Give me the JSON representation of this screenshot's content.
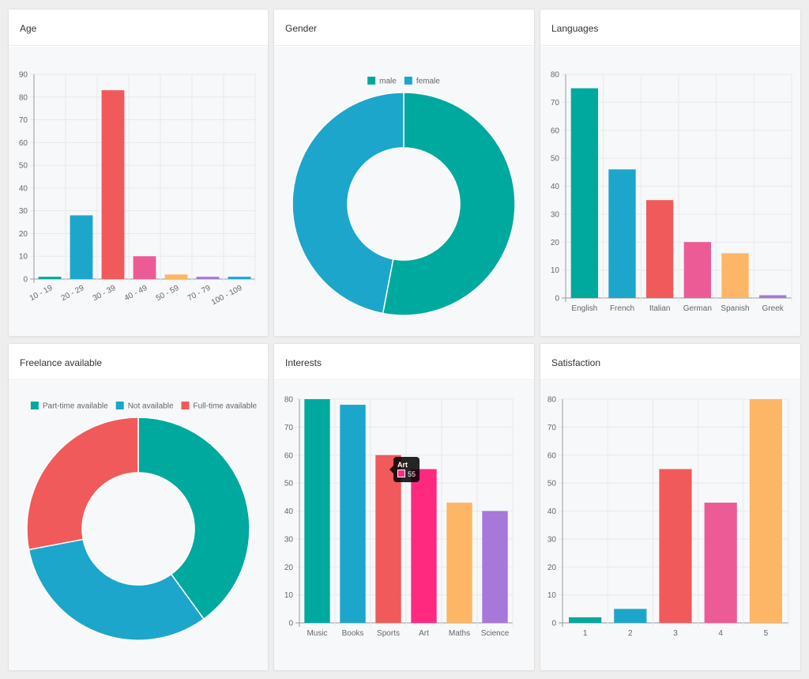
{
  "colors": {
    "teal": "#00a99d",
    "blue": "#1da6cb",
    "red": "#f05a5b",
    "pink": "#ec5b95",
    "orange": "#fdb665",
    "purple": "#a678d9",
    "magenta": "#ff2a7f"
  },
  "charts": {
    "age": {
      "header": "Age",
      "chart_data": {
        "type": "bar",
        "categories": [
          "10 - 19",
          "20 - 29",
          "30 - 39",
          "40 - 49",
          "50 - 59",
          "70 - 79",
          "100 - 109"
        ],
        "values": [
          1,
          28,
          83,
          10,
          2,
          1,
          1
        ],
        "colors": [
          "#00a99d",
          "#1da6cb",
          "#f05a5b",
          "#ec5b95",
          "#fdb665",
          "#a678d9",
          "#1da6cb"
        ],
        "ylim": [
          0,
          90
        ],
        "yticks": [
          0,
          10,
          20,
          30,
          40,
          50,
          60,
          70,
          80,
          90
        ],
        "rotated_labels": true,
        "grid": true
      }
    },
    "gender": {
      "header": "Gender",
      "chart_data": {
        "type": "pie",
        "donut": true,
        "labels": [
          "male",
          "female"
        ],
        "values": [
          53,
          47
        ],
        "colors": [
          "#00a99d",
          "#1da6cb"
        ],
        "legend": "top"
      }
    },
    "languages": {
      "header": "Languages",
      "chart_data": {
        "type": "bar",
        "categories": [
          "English",
          "French",
          "Italian",
          "German",
          "Spanish",
          "Greek"
        ],
        "values": [
          75,
          46,
          35,
          20,
          16,
          1
        ],
        "colors": [
          "#00a99d",
          "#1da6cb",
          "#f05a5b",
          "#ec5b95",
          "#fdb665",
          "#a678d9"
        ],
        "ylim": [
          0,
          80
        ],
        "yticks": [
          0,
          10,
          20,
          30,
          40,
          50,
          60,
          70,
          80
        ],
        "grid": true
      }
    },
    "freelance": {
      "header": "Freelance available",
      "chart_data": {
        "type": "pie",
        "donut": true,
        "labels": [
          "Part-time available",
          "Not available",
          "Full-time available"
        ],
        "values": [
          40,
          32,
          28
        ],
        "colors": [
          "#00a99d",
          "#1da6cb",
          "#f05a5b"
        ],
        "legend": "top"
      }
    },
    "interests": {
      "header": "Interests",
      "chart_data": {
        "type": "bar",
        "categories": [
          "Music",
          "Books",
          "Sports",
          "Art",
          "Maths",
          "Science"
        ],
        "values": [
          80,
          78,
          60,
          55,
          43,
          40
        ],
        "colors": [
          "#00a99d",
          "#1da6cb",
          "#f05a5b",
          "#ff2a7f",
          "#fdb665",
          "#a678d9"
        ],
        "ylim": [
          0,
          80
        ],
        "yticks": [
          0,
          10,
          20,
          30,
          40,
          50,
          60,
          70,
          80
        ],
        "grid": true
      },
      "tooltip": {
        "title": "Art",
        "value": "55",
        "color": "#ff2a7f"
      }
    },
    "satisfaction": {
      "header": "Satisfaction",
      "chart_data": {
        "type": "bar",
        "categories": [
          "1",
          "2",
          "3",
          "4",
          "5"
        ],
        "values": [
          2,
          5,
          55,
          43,
          80
        ],
        "colors": [
          "#00a99d",
          "#1da6cb",
          "#f05a5b",
          "#ec5b95",
          "#fdb665"
        ],
        "ylim": [
          0,
          80
        ],
        "yticks": [
          0,
          10,
          20,
          30,
          40,
          50,
          60,
          70,
          80
        ],
        "grid": true
      }
    }
  }
}
